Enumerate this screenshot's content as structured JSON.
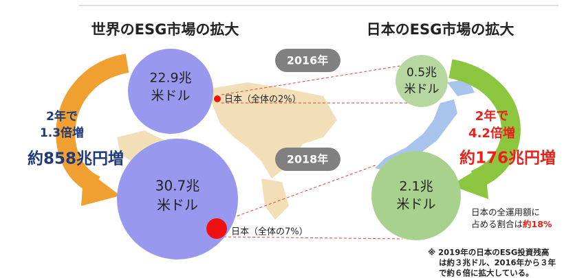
{
  "world": {
    "title": "世界のESG市場の拡大",
    "circles": [
      {
        "lines": [
          "22.9兆",
          "米ドル"
        ]
      },
      {
        "lines": [
          "30.7兆",
          "米ドル"
        ]
      }
    ],
    "japan_notes": [
      "日本（全体の2%）",
      "日本（全体の7%）"
    ],
    "growth": [
      "2年で",
      "1.3倍増"
    ],
    "increase": "約858兆円増"
  },
  "years": [
    "2016年",
    "2018年"
  ],
  "japan": {
    "title": "日本のESG市場の拡大",
    "circles": [
      {
        "lines": [
          "0.5兆",
          "米ドル"
        ]
      },
      {
        "lines": [
          "2.1兆",
          "米ドル"
        ]
      }
    ],
    "growth": [
      "2年で",
      "4.2倍増"
    ],
    "increase": "約176兆円増",
    "share": {
      "line1": "日本の全運用額に",
      "line2": "占める割合は",
      "value": "約18%"
    }
  },
  "footnote": [
    "※ 2019年の日本のESG投資残高",
    "は約３兆ドル、2016年から３年",
    "で約６倍に拡大している。"
  ]
}
